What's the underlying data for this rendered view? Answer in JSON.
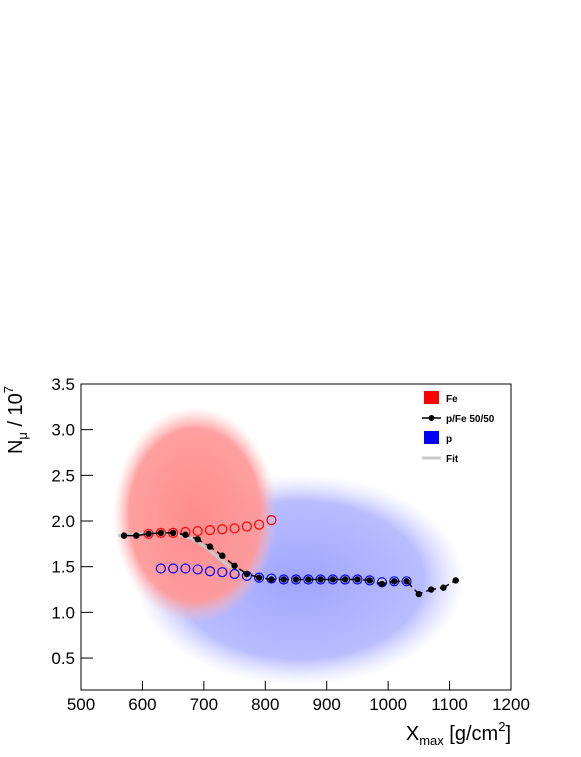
{
  "chart_data": {
    "type": "scatter",
    "xlabel": {
      "base": "X",
      "sub": "max",
      "rest": " [g/cm",
      "sup": "2",
      "end": "]"
    },
    "ylabel": {
      "base": "N",
      "sub": "μ",
      "rest": " / 10",
      "sup": "7"
    },
    "xlim": [
      500,
      1200
    ],
    "ylim": [
      0.15,
      3.5
    ],
    "xticks": [
      500,
      600,
      700,
      800,
      900,
      1000,
      1100,
      1200
    ],
    "yticks": [
      0.5,
      {
        "value": 1,
        "label": "1.0"
      },
      1.5,
      {
        "value": 2,
        "label": "2.0"
      },
      2.5,
      {
        "value": 3,
        "label": "3.0"
      },
      3.5
    ],
    "legend": "top-right",
    "series": [
      {
        "name": "Fe",
        "color": "#ff0000",
        "marker": "open-circle",
        "x": [
          610,
          630,
          650,
          670,
          690,
          710,
          730,
          750,
          770,
          790,
          810
        ],
        "values": [
          1.86,
          1.87,
          1.87,
          1.88,
          1.89,
          1.9,
          1.91,
          1.92,
          1.94,
          1.96,
          2.01
        ]
      },
      {
        "name": "p/Fe 50/50",
        "color": "#000000",
        "marker": "dot",
        "x": [
          570,
          590,
          610,
          630,
          650,
          670,
          690,
          710,
          730,
          750,
          770,
          790,
          810,
          830,
          850,
          870,
          890,
          910,
          930,
          950,
          970,
          990,
          1010,
          1030,
          1050,
          1070,
          1090,
          1110
        ],
        "values": [
          1.84,
          1.84,
          1.86,
          1.87,
          1.87,
          1.85,
          1.8,
          1.72,
          1.62,
          1.51,
          1.42,
          1.38,
          1.36,
          1.36,
          1.36,
          1.36,
          1.36,
          1.36,
          1.36,
          1.36,
          1.35,
          1.31,
          1.34,
          1.34,
          1.2,
          1.25,
          1.27,
          1.35
        ]
      },
      {
        "name": "p",
        "color": "#0000ff",
        "marker": "open-circle",
        "x": [
          630,
          650,
          670,
          690,
          710,
          730,
          750,
          770,
          790,
          810,
          830,
          850,
          870,
          890,
          910,
          930,
          950,
          970,
          990,
          1010,
          1030
        ],
        "values": [
          1.48,
          1.48,
          1.48,
          1.47,
          1.45,
          1.44,
          1.42,
          1.4,
          1.38,
          1.37,
          1.36,
          1.36,
          1.36,
          1.36,
          1.36,
          1.36,
          1.36,
          1.35,
          1.33,
          1.34,
          1.34
        ]
      },
      {
        "name": "Fit",
        "color": "#c8c8c8",
        "marker": "line",
        "x": [
          560,
          580,
          600,
          620,
          640,
          660,
          680,
          700,
          720,
          740,
          760,
          780,
          800,
          820,
          840,
          860,
          880,
          900,
          920,
          940,
          960,
          980,
          1000,
          1020,
          1040
        ],
        "values": [
          1.84,
          1.85,
          1.86,
          1.87,
          1.87,
          1.85,
          1.81,
          1.73,
          1.62,
          1.51,
          1.43,
          1.38,
          1.36,
          1.35,
          1.35,
          1.35,
          1.35,
          1.35,
          1.35,
          1.35,
          1.35,
          1.35,
          1.35,
          1.35,
          1.35
        ]
      }
    ]
  }
}
